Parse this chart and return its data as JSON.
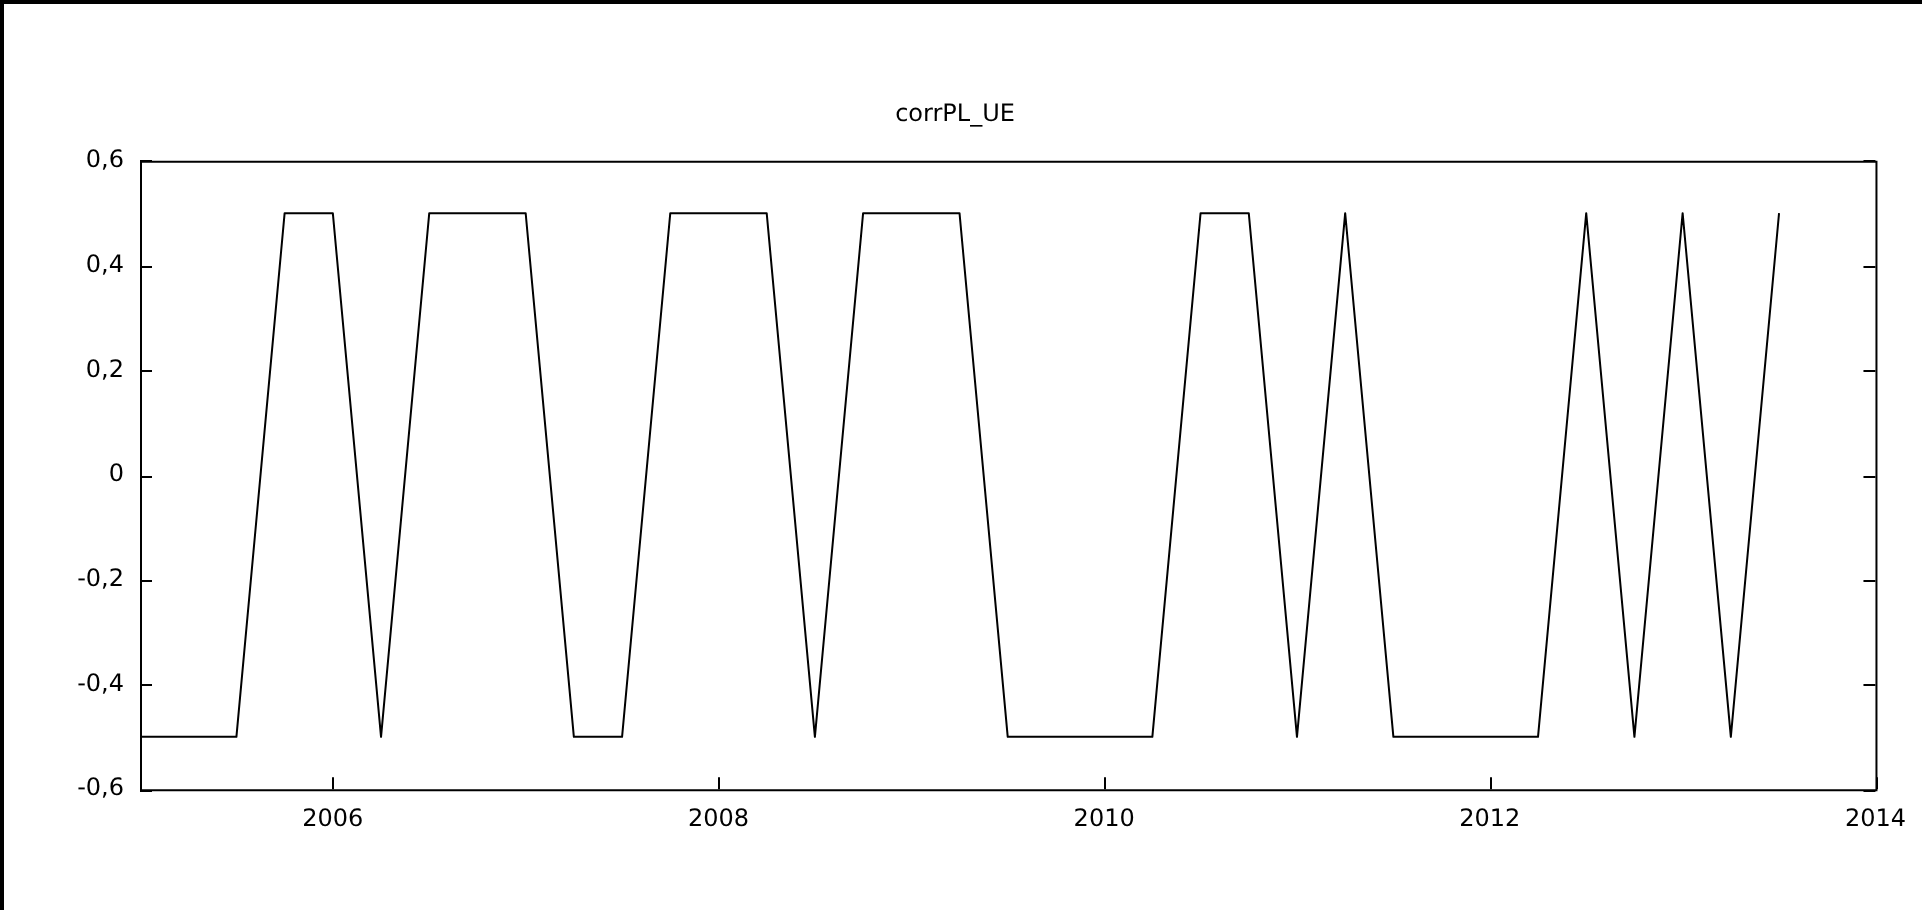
{
  "chart_data": {
    "type": "line",
    "title": "corrPL_UE",
    "x": [
      2005,
      2005.5,
      2005.75,
      2006,
      2006.25,
      2006.5,
      2007,
      2007.25,
      2007.5,
      2007.75,
      2008.25,
      2008.5,
      2008.75,
      2009.25,
      2009.5,
      2010.25,
      2010.5,
      2010.75,
      2011,
      2011.25,
      2011.5,
      2012.25,
      2012.5,
      2012.75,
      2013,
      2013.25,
      2013.5
    ],
    "series": [
      {
        "color": "#000000",
        "values": [
          -0.5,
          -0.5,
          0.5,
          0.5,
          -0.5,
          0.5,
          0.5,
          -0.5,
          -0.5,
          0.5,
          0.5,
          -0.5,
          0.5,
          0.5,
          -0.5,
          -0.5,
          0.5,
          0.5,
          -0.5,
          0.5,
          -0.5,
          -0.5,
          0.5,
          -0.5,
          0.5,
          -0.5,
          0.5
        ]
      }
    ],
    "xlim": [
      2005,
      2014
    ],
    "xticks": [
      2006,
      2008,
      2010,
      2012,
      2014
    ],
    "ylim": [
      -0.6,
      0.6
    ],
    "yticks": [
      {
        "value": -0.6,
        "label": "-0,6"
      },
      {
        "value": -0.4,
        "label": "-0,4"
      },
      {
        "value": -0.2,
        "label": "-0,2"
      },
      {
        "value": 0,
        "label": "0"
      },
      {
        "value": 0.2,
        "label": "0,2"
      },
      {
        "value": 0.4,
        "label": "0,4"
      },
      {
        "value": 0.6,
        "label": "0,6"
      }
    ],
    "grid": false,
    "legend": false,
    "marker": "none",
    "line_style": "solid"
  }
}
